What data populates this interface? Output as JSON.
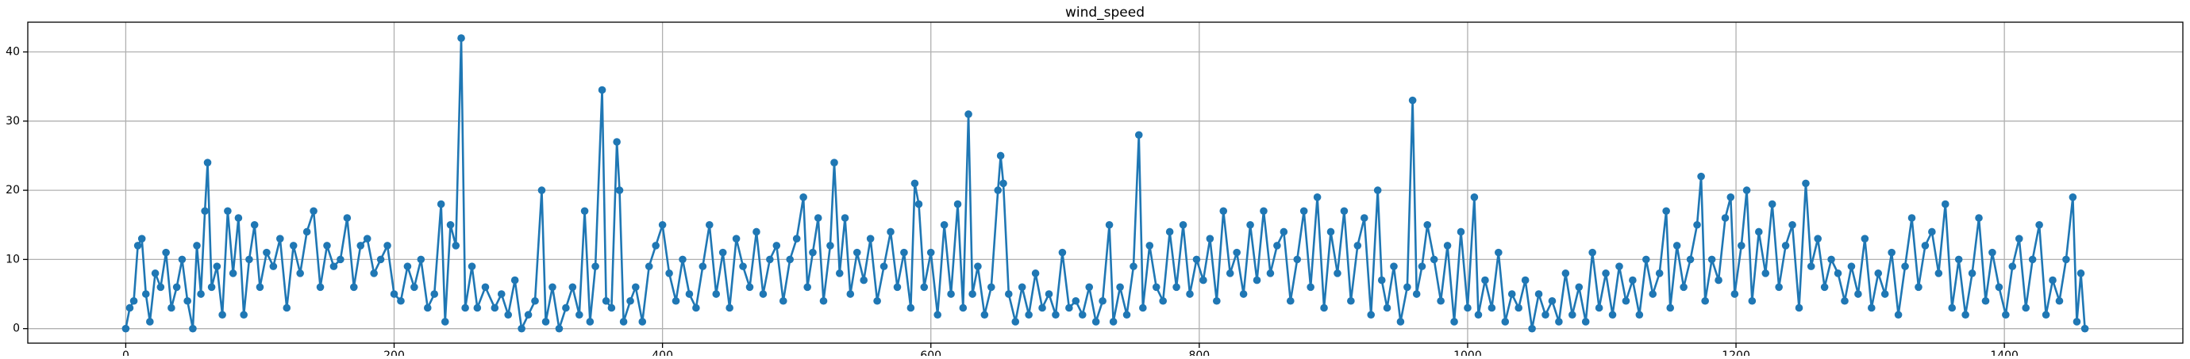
{
  "chart_data": {
    "type": "line",
    "title": "wind_speed",
    "x": [
      0,
      3,
      6,
      9,
      12,
      15,
      18,
      22,
      26,
      30,
      34,
      38,
      42,
      46,
      50,
      53,
      56,
      59,
      61,
      64,
      68,
      72,
      76,
      80,
      84,
      88,
      92,
      96,
      100,
      105,
      110,
      115,
      120,
      125,
      130,
      135,
      140,
      145,
      150,
      155,
      160,
      165,
      170,
      175,
      180,
      185,
      190,
      195,
      200,
      205,
      210,
      215,
      220,
      225,
      230,
      235,
      238,
      242,
      246,
      250,
      253,
      258,
      262,
      268,
      275,
      280,
      285,
      290,
      295,
      300,
      305,
      310,
      313,
      318,
      323,
      328,
      333,
      338,
      342,
      346,
      350,
      355,
      358,
      362,
      366,
      368,
      371,
      376,
      380,
      385,
      390,
      395,
      400,
      405,
      410,
      415,
      420,
      425,
      430,
      435,
      440,
      445,
      450,
      455,
      460,
      465,
      470,
      475,
      480,
      485,
      490,
      495,
      500,
      505,
      508,
      512,
      516,
      520,
      525,
      528,
      532,
      536,
      540,
      545,
      550,
      555,
      560,
      565,
      570,
      575,
      580,
      585,
      588,
      591,
      595,
      600,
      605,
      610,
      615,
      620,
      624,
      628,
      631,
      635,
      640,
      645,
      650,
      652,
      654,
      658,
      663,
      668,
      673,
      678,
      683,
      688,
      693,
      698,
      703,
      708,
      713,
      718,
      723,
      728,
      733,
      736,
      741,
      746,
      751,
      755,
      758,
      763,
      768,
      773,
      778,
      783,
      788,
      793,
      798,
      803,
      808,
      813,
      818,
      823,
      828,
      833,
      838,
      843,
      848,
      853,
      858,
      863,
      868,
      873,
      878,
      883,
      888,
      893,
      898,
      903,
      908,
      913,
      918,
      923,
      928,
      933,
      936,
      940,
      945,
      950,
      955,
      959,
      962,
      966,
      970,
      975,
      980,
      985,
      990,
      995,
      1000,
      1005,
      1008,
      1013,
      1018,
      1023,
      1028,
      1033,
      1038,
      1043,
      1048,
      1053,
      1058,
      1063,
      1068,
      1073,
      1078,
      1083,
      1088,
      1093,
      1098,
      1103,
      1108,
      1113,
      1118,
      1123,
      1128,
      1133,
      1138,
      1143,
      1148,
      1151,
      1156,
      1161,
      1166,
      1171,
      1174,
      1177,
      1182,
      1187,
      1192,
      1196,
      1199,
      1204,
      1208,
      1212,
      1217,
      1222,
      1227,
      1232,
      1237,
      1242,
      1247,
      1252,
      1256,
      1261,
      1266,
      1271,
      1276,
      1281,
      1286,
      1291,
      1296,
      1301,
      1306,
      1311,
      1316,
      1321,
      1326,
      1331,
      1336,
      1341,
      1346,
      1351,
      1356,
      1361,
      1366,
      1371,
      1376,
      1381,
      1386,
      1391,
      1396,
      1401,
      1406,
      1411,
      1416,
      1421,
      1426,
      1431,
      1436,
      1441,
      1446,
      1451,
      1454,
      1457,
      1460
    ],
    "series": [
      {
        "name": "wind_speed",
        "color": "#1f77b4",
        "values": [
          0,
          3,
          4,
          12,
          13,
          5,
          1,
          8,
          6,
          11,
          3,
          6,
          10,
          4,
          0,
          12,
          5,
          17,
          24,
          6,
          9,
          2,
          17,
          8,
          16,
          2,
          10,
          15,
          6,
          11,
          9,
          13,
          3,
          12,
          8,
          14,
          17,
          6,
          12,
          9,
          10,
          16,
          6,
          12,
          13,
          8,
          10,
          12,
          5,
          4,
          9,
          6,
          10,
          3,
          5,
          18,
          1,
          15,
          12,
          42,
          3,
          9,
          3,
          6,
          3,
          5,
          2,
          7,
          0,
          2,
          4,
          20,
          1,
          6,
          0,
          3,
          6,
          2,
          17,
          1,
          9,
          34.5,
          4,
          3,
          27,
          20,
          1,
          4,
          6,
          1,
          9,
          12,
          15,
          8,
          4,
          10,
          5,
          3,
          9,
          15,
          5,
          11,
          3,
          13,
          9,
          6,
          14,
          5,
          10,
          12,
          4,
          10,
          13,
          19,
          6,
          11,
          16,
          4,
          12,
          24,
          8,
          16,
          5,
          11,
          7,
          13,
          4,
          9,
          14,
          6,
          11,
          3,
          21,
          18,
          6,
          11,
          2,
          15,
          5,
          18,
          3,
          31,
          5,
          9,
          2,
          6,
          20,
          25,
          21,
          5,
          1,
          6,
          2,
          8,
          3,
          5,
          2,
          11,
          3,
          4,
          2,
          6,
          1,
          4,
          15,
          1,
          6,
          2,
          9,
          28,
          3,
          12,
          6,
          4,
          14,
          6,
          15,
          5,
          10,
          7,
          13,
          4,
          17,
          8,
          11,
          5,
          15,
          7,
          17,
          8,
          12,
          14,
          4,
          10,
          17,
          6,
          19,
          3,
          14,
          8,
          17,
          4,
          12,
          16,
          2,
          20,
          7,
          3,
          9,
          1,
          6,
          33,
          5,
          9,
          15,
          10,
          4,
          12,
          1,
          14,
          3,
          19,
          2,
          7,
          3,
          11,
          1,
          5,
          3,
          7,
          0,
          5,
          2,
          4,
          1,
          8,
          2,
          6,
          1,
          11,
          3,
          8,
          2,
          9,
          4,
          7,
          2,
          10,
          5,
          8,
          17,
          3,
          12,
          6,
          10,
          15,
          22,
          4,
          10,
          7,
          16,
          19,
          5,
          12,
          20,
          4,
          14,
          8,
          18,
          6,
          12,
          15,
          3,
          21,
          9,
          13,
          6,
          10,
          8,
          4,
          9,
          5,
          13,
          3,
          8,
          5,
          11,
          2,
          9,
          16,
          6,
          12,
          14,
          8,
          18,
          3,
          10,
          2,
          8,
          16,
          4,
          11,
          6,
          2,
          9,
          13,
          3,
          10,
          15,
          2,
          7,
          4,
          10,
          19,
          1,
          8,
          0
        ]
      }
    ],
    "xlim": [
      -73,
      1533
    ],
    "ylim": [
      -2.1,
      44.3
    ],
    "xticks": [
      0,
      200,
      400,
      600,
      800,
      1000,
      1200,
      1400
    ],
    "yticks": [
      0,
      10,
      20,
      30,
      40
    ],
    "grid": true
  }
}
